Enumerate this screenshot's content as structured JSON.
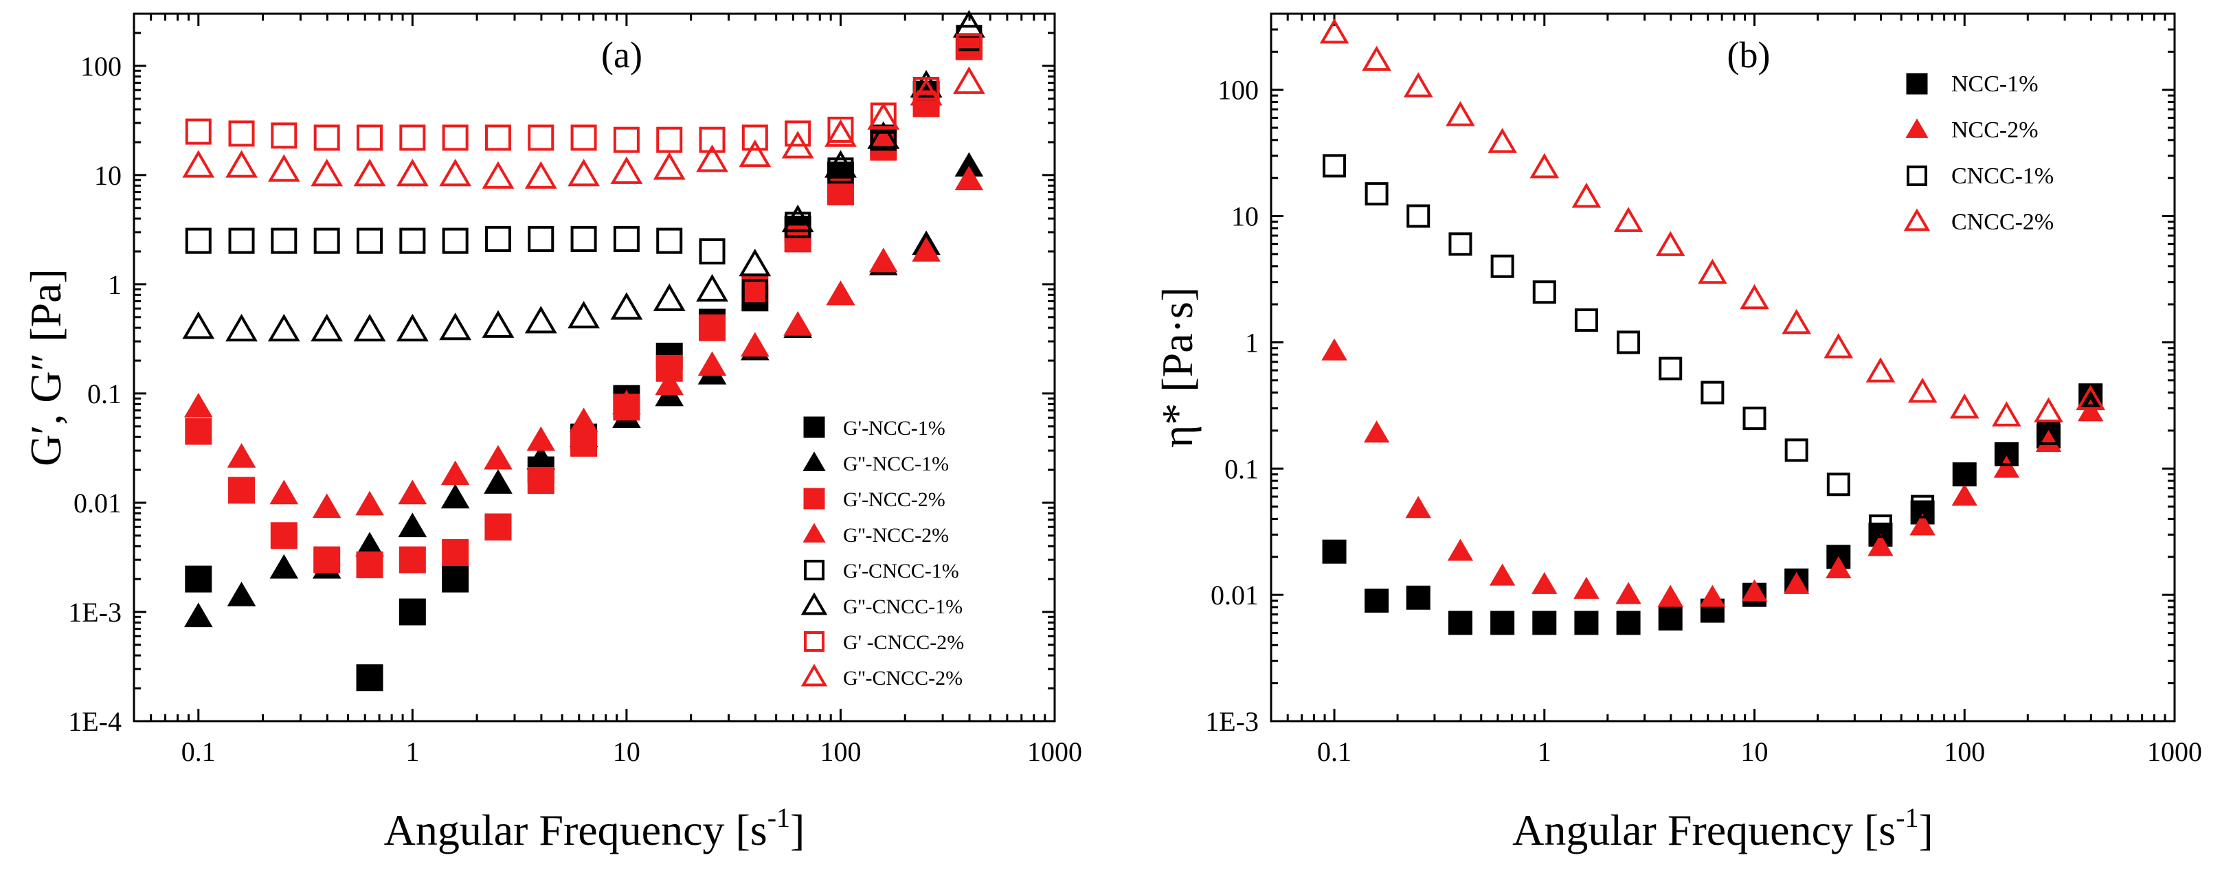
{
  "chart_data": [
    {
      "type": "scatter",
      "panel_label": "(a)",
      "xlabel": "Angular Frequency [s",
      "xlabel_sup": "-1",
      "xlabel_end": "]",
      "ylabel": "G′, G″ [Pa]",
      "x_scale": "log",
      "y_scale": "log",
      "xlim": [
        0.05,
        1000
      ],
      "ylim": [
        0.0001,
        300
      ],
      "x_ticks": [
        0.1,
        1,
        10,
        100,
        1000
      ],
      "x_tick_labels": [
        "0.1",
        "1",
        "10",
        "100",
        "1000"
      ],
      "y_ticks": [
        0.0001,
        0.001,
        0.01,
        0.1,
        1,
        10,
        100
      ],
      "y_tick_labels": [
        "1E-4",
        "1E-3",
        "0.01",
        "0.1",
        "1",
        "10",
        "100"
      ],
      "legend_position": "bottom-right",
      "x": [
        0.1,
        0.159,
        0.251,
        0.398,
        0.631,
        1.0,
        1.585,
        2.512,
        3.981,
        6.31,
        10.0,
        15.85,
        25.12,
        39.81,
        63.1,
        100.0,
        158.5,
        251.2,
        398.1
      ],
      "series": [
        {
          "name": "G'-NCC-1%",
          "color": "#000000",
          "marker": "square",
          "filled": true,
          "x": [
            0.1,
            0.631,
            1.0,
            1.585,
            2.512,
            3.981,
            6.31,
            10.0,
            15.85,
            25.12,
            39.81,
            63.1,
            100.0,
            158.5,
            251.2,
            398.1
          ],
          "values": [
            0.002,
            0.00025,
            0.001,
            0.002,
            0.006,
            0.02,
            0.04,
            0.09,
            0.22,
            0.45,
            0.75,
            3.2,
            10,
            20,
            55,
            150
          ]
        },
        {
          "name": "G''-NCC-1%",
          "color": "#000000",
          "marker": "triangle",
          "filled": true,
          "x": [
            0.1,
            0.159,
            0.251,
            0.398,
            0.631,
            1.0,
            1.585,
            2.512,
            3.981,
            6.31,
            10.0,
            15.85,
            25.12,
            39.81,
            63.1,
            100.0,
            158.5,
            251.2,
            398.1
          ],
          "values": [
            0.0009,
            0.0014,
            0.0025,
            0.0025,
            0.004,
            0.006,
            0.011,
            0.015,
            0.025,
            0.04,
            0.06,
            0.095,
            0.15,
            0.25,
            0.4,
            0.8,
            1.5,
            2.3,
            12
          ]
        },
        {
          "name": "G'-NCC-2%",
          "color": "#ee1c1c",
          "marker": "square",
          "filled": true,
          "x": [
            0.1,
            0.159,
            0.251,
            0.398,
            0.631,
            1.0,
            1.585,
            2.512,
            3.981,
            6.31,
            10.0,
            15.85,
            25.12,
            39.81,
            63.1,
            100.0,
            158.5,
            251.2,
            398.1
          ],
          "values": [
            0.045,
            0.013,
            0.005,
            0.003,
            0.0027,
            0.003,
            0.0035,
            0.006,
            0.016,
            0.035,
            0.075,
            0.17,
            0.4,
            0.9,
            2.6,
            7,
            18,
            45,
            150
          ]
        },
        {
          "name": "G''-NCC-2%",
          "color": "#ee1c1c",
          "marker": "triangle",
          "filled": true,
          "x": [
            0.1,
            0.159,
            0.251,
            0.398,
            0.631,
            1.0,
            1.585,
            2.512,
            3.981,
            6.31,
            10.0,
            15.85,
            25.12,
            39.81,
            63.1,
            100.0,
            158.5,
            251.2,
            398.1
          ],
          "values": [
            0.075,
            0.026,
            0.012,
            0.009,
            0.0095,
            0.012,
            0.018,
            0.025,
            0.037,
            0.055,
            0.08,
            0.12,
            0.18,
            0.27,
            0.42,
            0.8,
            1.6,
            2.0,
            9
          ]
        },
        {
          "name": "G'-CNCC-1%",
          "color": "#000000",
          "marker": "square",
          "filled": false,
          "x": [
            0.1,
            0.159,
            0.251,
            0.398,
            0.631,
            1.0,
            1.585,
            2.512,
            3.981,
            6.31,
            10.0,
            15.85,
            25.12,
            39.81,
            63.1,
            100.0,
            158.5,
            251.2,
            398.1
          ],
          "values": [
            2.5,
            2.5,
            2.5,
            2.5,
            2.5,
            2.5,
            2.5,
            2.6,
            2.6,
            2.6,
            2.6,
            2.5,
            2.0,
            0.85,
            3.5,
            11,
            22,
            60,
            180
          ]
        },
        {
          "name": "G''-CNCC-1%",
          "color": "#000000",
          "marker": "triangle",
          "filled": false,
          "x": [
            0.1,
            0.159,
            0.251,
            0.398,
            0.631,
            1.0,
            1.585,
            2.512,
            3.981,
            6.31,
            10.0,
            15.85,
            25.12,
            39.81,
            63.1,
            100.0,
            158.5,
            251.2,
            398.1
          ],
          "values": [
            0.4,
            0.38,
            0.38,
            0.38,
            0.38,
            0.38,
            0.39,
            0.41,
            0.45,
            0.5,
            0.6,
            0.72,
            0.88,
            1.5,
            3.8,
            12,
            22,
            65,
            230
          ]
        },
        {
          "name": "G' -CNCC-2%",
          "color": "#ee1c1c",
          "marker": "square",
          "filled": false,
          "x": [
            0.1,
            0.159,
            0.251,
            0.398,
            0.631,
            1.0,
            1.585,
            2.512,
            3.981,
            6.31,
            10.0,
            15.85,
            25.12,
            39.81,
            63.1,
            100.0,
            158.5,
            251.2,
            398.1
          ],
          "values": [
            25,
            24,
            23,
            22,
            22,
            22,
            22,
            22,
            22,
            22,
            21,
            21,
            21,
            22,
            24,
            26,
            35,
            60,
            150
          ]
        },
        {
          "name": "G''-CNCC-2%",
          "color": "#ee1c1c",
          "marker": "triangle",
          "filled": false,
          "x": [
            0.1,
            0.159,
            0.251,
            0.398,
            0.631,
            1.0,
            1.585,
            2.512,
            3.981,
            6.31,
            10.0,
            15.85,
            25.12,
            39.81,
            63.1,
            100.0,
            158.5,
            251.2,
            398.1
          ],
          "values": [
            12,
            12,
            11,
            10,
            10,
            10,
            10,
            9.5,
            9.5,
            10,
            10.5,
            11.5,
            13.5,
            15,
            18,
            23,
            33,
            55,
            70
          ]
        }
      ]
    },
    {
      "type": "scatter",
      "panel_label": "(b)",
      "xlabel": "Angular Frequency [s",
      "xlabel_sup": "-1",
      "xlabel_end": "]",
      "ylabel": "η* [Pa·s]",
      "x_scale": "log",
      "y_scale": "log",
      "xlim": [
        0.05,
        1000
      ],
      "ylim": [
        0.001,
        400
      ],
      "x_ticks": [
        0.1,
        1,
        10,
        100,
        1000
      ],
      "x_tick_labels": [
        "0.1",
        "1",
        "10",
        "100",
        "1000"
      ],
      "y_ticks": [
        0.001,
        0.01,
        0.1,
        1,
        10,
        100
      ],
      "y_tick_labels": [
        "1E-3",
        "0.01",
        "0.1",
        "1",
        "10",
        "100"
      ],
      "legend_position": "top-right",
      "series": [
        {
          "name": "NCC-1%",
          "color": "#000000",
          "marker": "square",
          "filled": true,
          "x": [
            0.1,
            0.159,
            0.251,
            0.398,
            0.631,
            1.0,
            1.585,
            2.512,
            3.981,
            6.31,
            10.0,
            15.85,
            25.12,
            39.81,
            63.1,
            100.0,
            158.5,
            251.2,
            398.1
          ],
          "values": [
            0.022,
            0.009,
            0.0095,
            0.006,
            0.006,
            0.006,
            0.006,
            0.006,
            0.0065,
            0.0075,
            0.01,
            0.013,
            0.02,
            0.03,
            0.045,
            0.09,
            0.13,
            0.18,
            0.38
          ]
        },
        {
          "name": "NCC-2%",
          "color": "#ee1c1c",
          "marker": "triangle",
          "filled": true,
          "x": [
            0.1,
            0.159,
            0.251,
            0.398,
            0.631,
            1.0,
            1.585,
            2.512,
            3.981,
            6.31,
            10.0,
            15.85,
            25.12,
            39.81,
            63.1,
            100.0,
            158.5,
            251.2,
            398.1
          ],
          "values": [
            0.85,
            0.19,
            0.048,
            0.022,
            0.014,
            0.012,
            0.011,
            0.01,
            0.0095,
            0.0095,
            0.0105,
            0.012,
            0.016,
            0.024,
            0.035,
            0.06,
            0.1,
            0.16,
            0.28
          ]
        },
        {
          "name": "CNCC-1%",
          "color": "#000000",
          "marker": "square",
          "filled": false,
          "x": [
            0.1,
            0.159,
            0.251,
            0.398,
            0.631,
            1.0,
            1.585,
            2.512,
            3.981,
            6.31,
            10.0,
            15.85,
            25.12,
            39.81,
            63.1,
            100.0,
            158.5,
            251.2,
            398.1
          ],
          "values": [
            25,
            15,
            10,
            6,
            4,
            2.5,
            1.5,
            1.0,
            0.62,
            0.4,
            0.25,
            0.14,
            0.075,
            0.035,
            0.05,
            0.09,
            0.13,
            0.19,
            0.38
          ]
        },
        {
          "name": "CNCC-2%",
          "color": "#ee1c1c",
          "marker": "triangle",
          "filled": false,
          "x": [
            0.1,
            0.159,
            0.251,
            0.398,
            0.631,
            1.0,
            1.585,
            2.512,
            3.981,
            6.31,
            10.0,
            15.85,
            25.12,
            39.81,
            63.1,
            100.0,
            158.5,
            251.2,
            398.1
          ],
          "values": [
            280,
            170,
            105,
            62,
            38,
            24,
            14,
            9,
            5.8,
            3.5,
            2.2,
            1.4,
            0.9,
            0.58,
            0.4,
            0.3,
            0.26,
            0.28,
            0.35
          ]
        }
      ]
    }
  ]
}
